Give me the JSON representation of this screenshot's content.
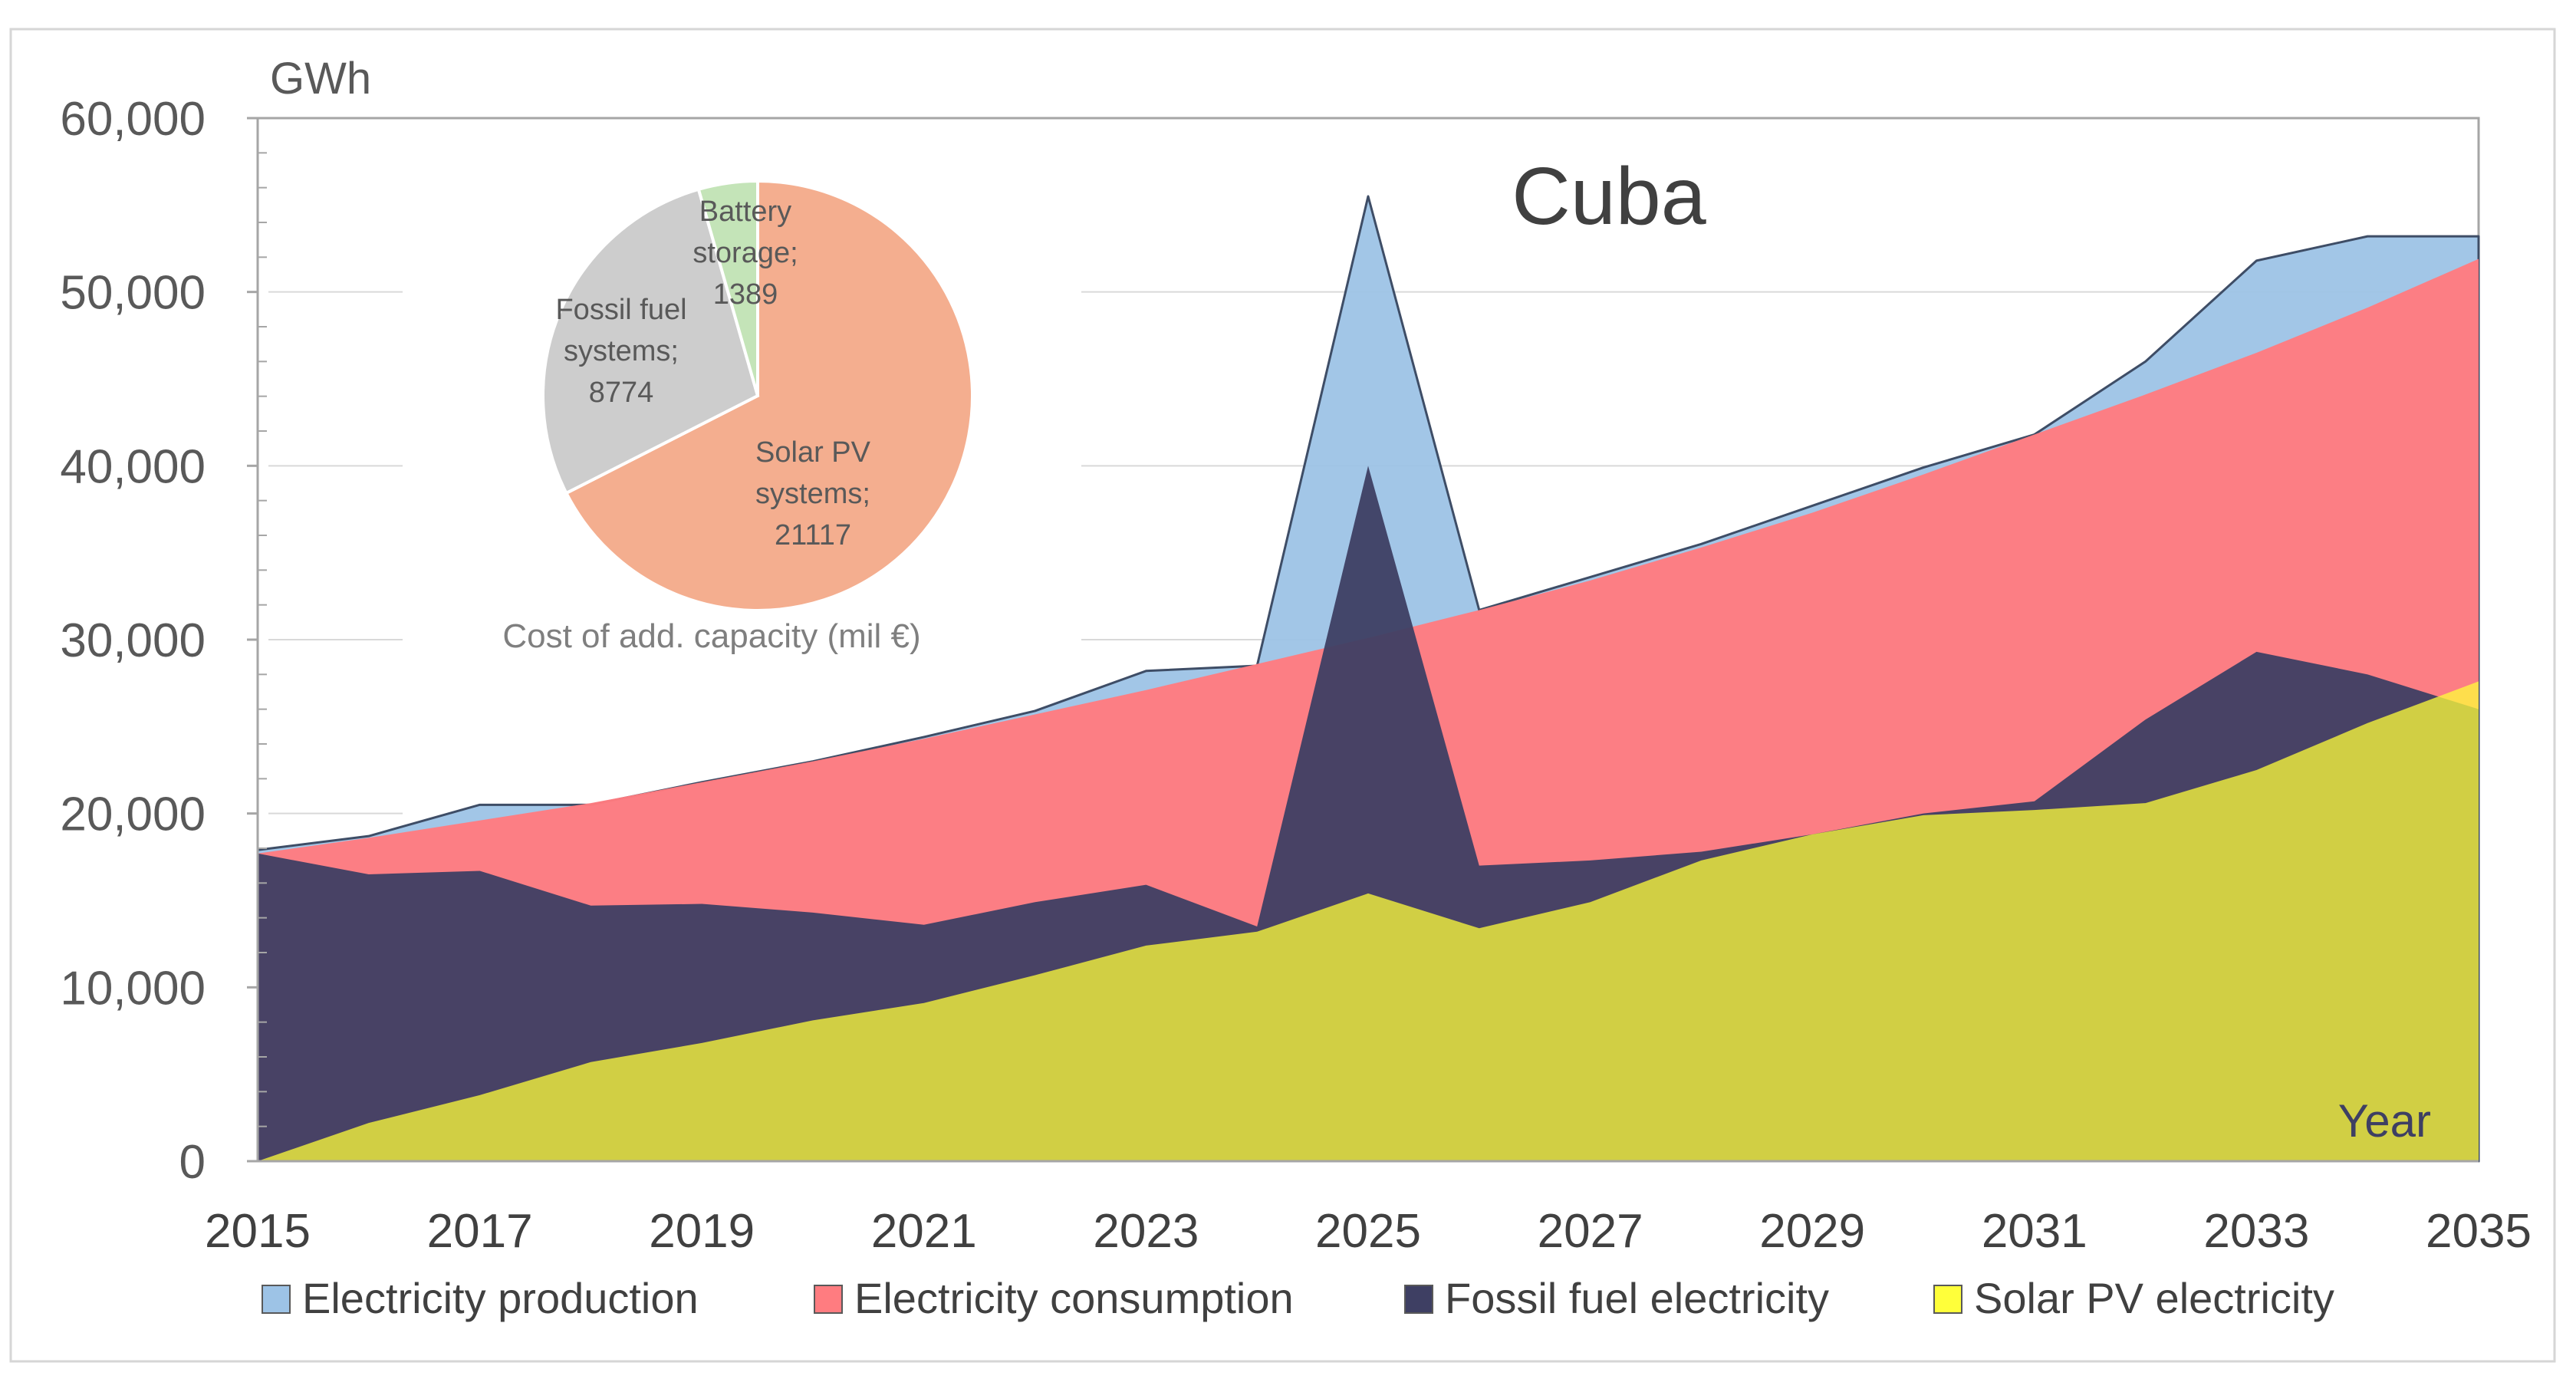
{
  "chart_data": {
    "type": "area",
    "title": "Cuba",
    "ylabel": "GWh",
    "xlabel": "Year",
    "xlim": [
      2015,
      2035
    ],
    "ylim": [
      0,
      60000
    ],
    "x_ticks": [
      "2015",
      "2017",
      "2019",
      "2021",
      "2023",
      "2025",
      "2027",
      "2029",
      "2031",
      "2033",
      "2035"
    ],
    "y_ticks": [
      "0",
      "10,000",
      "20,000",
      "30,000",
      "40,000",
      "50,000",
      "60,000"
    ],
    "y_tick_values": [
      0,
      10000,
      20000,
      30000,
      40000,
      50000,
      60000
    ],
    "grid": "horizontal",
    "legend_position": "bottom",
    "x": [
      2015,
      2016,
      2017,
      2018,
      2019,
      2020,
      2021,
      2022,
      2023,
      2024,
      2025,
      2026,
      2027,
      2028,
      2029,
      2030,
      2031,
      2032,
      2033,
      2034,
      2035
    ],
    "series": [
      {
        "name": "Electricity production",
        "color": "#9dc3e6",
        "values": [
          17900,
          18700,
          20500,
          20500,
          21800,
          23000,
          24400,
          25900,
          28200,
          28500,
          55500,
          31700,
          33600,
          35500,
          37700,
          39900,
          41800,
          46000,
          51800,
          53200,
          53200
        ]
      },
      {
        "name": "Electricity consumption",
        "color": "#ff7c80",
        "values": [
          17700,
          18600,
          19600,
          20600,
          21800,
          23000,
          24300,
          25700,
          27100,
          28600,
          30100,
          31700,
          33400,
          35300,
          37300,
          39500,
          41800,
          44100,
          46500,
          49100,
          51900
        ]
      },
      {
        "name": "Fossil fuel electricity",
        "color": "#3e3f63",
        "values": [
          17700,
          16500,
          16700,
          14700,
          14800,
          14300,
          13600,
          14900,
          15900,
          13500,
          40000,
          17000,
          17300,
          17800,
          18800,
          20000,
          20700,
          25400,
          29300,
          28000,
          26000
        ]
      },
      {
        "name": "Solar PV electricity",
        "color": "#ffff3a",
        "values": [
          0,
          2200,
          3800,
          5700,
          6800,
          8100,
          9100,
          10700,
          12400,
          13200,
          15400,
          13400,
          14900,
          17300,
          18800,
          19900,
          20200,
          20600,
          22500,
          25200,
          27600
        ]
      }
    ],
    "inset_pie": {
      "caption": "Cost of add. capacity (mil €)",
      "slices": [
        {
          "label_lines": [
            "Solar PV",
            "systems;",
            "21117"
          ],
          "value": 21117,
          "color": "#f4ae8f"
        },
        {
          "label_lines": [
            "Fossil fuel",
            "systems;",
            "8774"
          ],
          "value": 8774,
          "color": "#cdcdcd"
        },
        {
          "label_lines": [
            "Battery",
            "storage;",
            "1389"
          ],
          "value": 1389,
          "color": "#c4e4b8"
        }
      ]
    }
  }
}
